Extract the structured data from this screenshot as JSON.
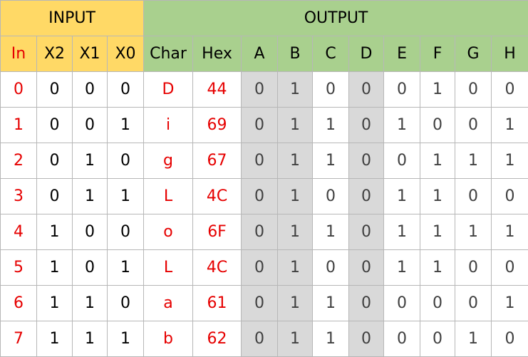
{
  "groups": {
    "input": "INPUT",
    "output": "OUTPUT"
  },
  "headers": [
    "In",
    "X2",
    "X1",
    "X0",
    "Char",
    "Hex",
    "A",
    "B",
    "C",
    "D",
    "E",
    "F",
    "G",
    "H"
  ],
  "rows": [
    {
      "in": "0",
      "x2": "0",
      "x1": "0",
      "x0": "0",
      "char": "D",
      "hex": "44",
      "bits": [
        "0",
        "1",
        "0",
        "0",
        "0",
        "1",
        "0",
        "0"
      ]
    },
    {
      "in": "1",
      "x2": "0",
      "x1": "0",
      "x0": "1",
      "char": "i",
      "hex": "69",
      "bits": [
        "0",
        "1",
        "1",
        "0",
        "1",
        "0",
        "0",
        "1"
      ]
    },
    {
      "in": "2",
      "x2": "0",
      "x1": "1",
      "x0": "0",
      "char": "g",
      "hex": "67",
      "bits": [
        "0",
        "1",
        "1",
        "0",
        "0",
        "1",
        "1",
        "1"
      ]
    },
    {
      "in": "3",
      "x2": "0",
      "x1": "1",
      "x0": "1",
      "char": "L",
      "hex": "4C",
      "bits": [
        "0",
        "1",
        "0",
        "0",
        "1",
        "1",
        "0",
        "0"
      ]
    },
    {
      "in": "4",
      "x2": "1",
      "x1": "0",
      "x0": "0",
      "char": "o",
      "hex": "6F",
      "bits": [
        "0",
        "1",
        "1",
        "0",
        "1",
        "1",
        "1",
        "1"
      ]
    },
    {
      "in": "5",
      "x2": "1",
      "x1": "0",
      "x0": "1",
      "char": "L",
      "hex": "4C",
      "bits": [
        "0",
        "1",
        "0",
        "0",
        "1",
        "1",
        "0",
        "0"
      ]
    },
    {
      "in": "6",
      "x2": "1",
      "x1": "1",
      "x0": "0",
      "char": "a",
      "hex": "61",
      "bits": [
        "0",
        "1",
        "1",
        "0",
        "0",
        "0",
        "0",
        "1"
      ]
    },
    {
      "in": "7",
      "x2": "1",
      "x1": "1",
      "x0": "1",
      "char": "b",
      "hex": "62",
      "bits": [
        "0",
        "1",
        "1",
        "0",
        "0",
        "0",
        "1",
        "0"
      ]
    }
  ],
  "colors": {
    "input_header": "#ffd966",
    "output_header": "#a9d08e",
    "highlight_text": "#e60000",
    "shaded_column": "#d9d9d9"
  }
}
